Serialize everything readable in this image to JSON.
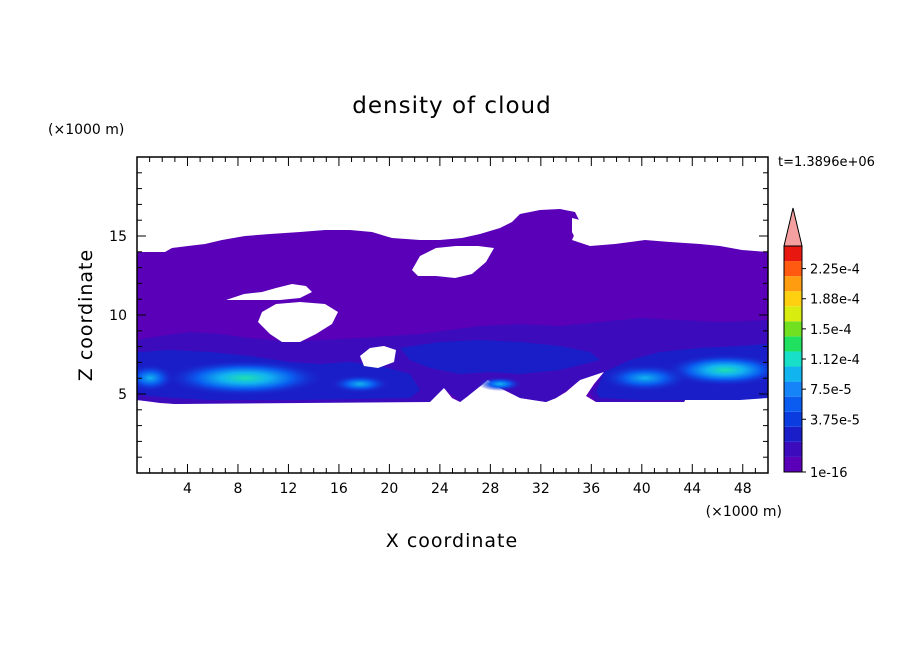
{
  "chart_data": {
    "type": "heatmap",
    "title": "density of cloud",
    "xlabel": "X coordinate",
    "ylabel": "Z coordinate",
    "x_unit": "(×1000 m)",
    "y_unit": "(×1000 m)",
    "time_label": "t=1.3896e+06",
    "xlim": [
      0,
      50
    ],
    "ylim": [
      0,
      20
    ],
    "x_ticks": [
      "4",
      "8",
      "12",
      "16",
      "20",
      "24",
      "28",
      "32",
      "36",
      "40",
      "44",
      "48"
    ],
    "x_tick_values": [
      4,
      8,
      12,
      16,
      20,
      24,
      28,
      32,
      36,
      40,
      44,
      48
    ],
    "y_ticks": [
      "5",
      "10",
      "15"
    ],
    "y_tick_values": [
      5,
      10,
      15
    ],
    "colorbar": {
      "labels": [
        "2.25e-4",
        "1.88e-4",
        "1.5e-4",
        "1.12e-4",
        "7.5e-5",
        "3.75e-5",
        "1e-16"
      ],
      "colors": [
        "#5a00b8",
        "#3c0cbc",
        "#1a1ec8",
        "#0b3ce0",
        "#0a5cf0",
        "#1484f8",
        "#12b4f0",
        "#18e0c8",
        "#20e060",
        "#70e020",
        "#d8ec10",
        "#ffd010",
        "#ff9c10",
        "#ff5a10",
        "#e81810"
      ],
      "extend_color": "#f4a0a0"
    },
    "cloud_layer": {
      "base_z": 4.6,
      "top_z": 13.8
    }
  }
}
